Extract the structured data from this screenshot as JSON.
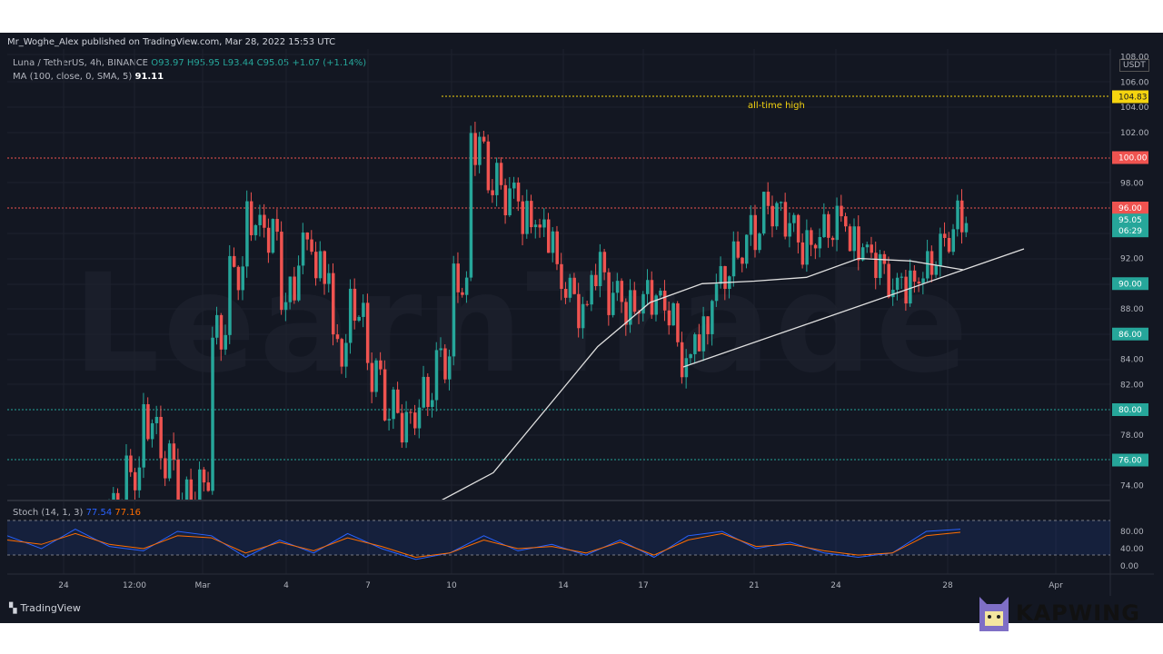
{
  "header": {
    "published": "Mr_Woghe_Alex published on TradingView.com, Mar 28, 2022 15:53 UTC"
  },
  "legend": {
    "symbol": "Luna / TetherUS, 4h, BINANCE",
    "o": "O93.97",
    "h": "H95.95",
    "l": "L93.44",
    "c": "C95.05",
    "chg": "+1.07 (+1.14%)",
    "ma_label": "MA (100, close, 0, SMA, 5)",
    "ma_value": "91.11"
  },
  "stoch": {
    "label": "Stoch (14, 1, 3)",
    "k": "77.54",
    "d": "77.16"
  },
  "price_axis": {
    "unit": "USDT",
    "ticks": [
      "108.00",
      "106.00",
      "104.00",
      "102.00",
      "98.00",
      "92.00",
      "88.00",
      "84.00",
      "82.00",
      "78.00",
      "74.00"
    ],
    "stoch_ticks": [
      "80.00",
      "40.00",
      "0.00"
    ]
  },
  "badges": {
    "ath": "104.83",
    "l100": "100.00",
    "l96": "96.00",
    "price": "95.05",
    "countdown": "06:29",
    "l90": "90.00",
    "l86": "86.00",
    "l80": "80.00",
    "l76": "76.00"
  },
  "annotation": {
    "ath_text": "all-time high"
  },
  "time_axis": {
    "labels": [
      "24",
      "12:00",
      "Mar",
      "4",
      "7",
      "10",
      "14",
      "17",
      "21",
      "24",
      "28",
      "Apr"
    ]
  },
  "watermark": "LearnTrade",
  "branding": {
    "tradingview": "TradingView",
    "kapwing": "KAPWING"
  },
  "colors": {
    "bg": "#131722",
    "up": "#26a69a",
    "down": "#ef5350",
    "ma": "#e0e0e0",
    "ath": "#f5d40f",
    "stoch_k": "#2962ff",
    "stoch_d": "#ff6d00"
  },
  "chart_data": {
    "type": "candlestick",
    "title": "Luna / TetherUS, 4h, BINANCE",
    "ylim": [
      72.5,
      108.5
    ],
    "horizontal_levels": [
      {
        "value": 104.83,
        "color": "#f5d40f",
        "label": "all-time high"
      },
      {
        "value": 100.0,
        "color": "#ef5350"
      },
      {
        "value": 96.0,
        "color": "#ef5350"
      },
      {
        "value": 80.0,
        "color": "#26a69a"
      },
      {
        "value": 76.0,
        "color": "#26a69a"
      }
    ],
    "trendline": {
      "from": [
        "Mar 18",
        83.4
      ],
      "to": [
        "Mar 30",
        93.0
      ]
    },
    "closes_approx": [
      72,
      75,
      79,
      76,
      73,
      74,
      86,
      91,
      95,
      94,
      89,
      93,
      91,
      85,
      88,
      83,
      80,
      79,
      81,
      84,
      90,
      101,
      98,
      97,
      95,
      94,
      90,
      88,
      91,
      89,
      88,
      89,
      88,
      84,
      86,
      90,
      92,
      94,
      96,
      95,
      93,
      94,
      95,
      93,
      92,
      90,
      90,
      91,
      93,
      95
    ],
    "ma100_approx": [
      70,
      71.5,
      75,
      80,
      85,
      88.5,
      90,
      90.2,
      90.5,
      92,
      91.8,
      91.1
    ],
    "stoch_k_approx": [
      70,
      40,
      85,
      45,
      35,
      80,
      70,
      20,
      60,
      30,
      75,
      40,
      15,
      30,
      70,
      35,
      50,
      25,
      60,
      20,
      70,
      80,
      40,
      55,
      30,
      20,
      30,
      80,
      85
    ],
    "stoch_d_approx": [
      60,
      50,
      75,
      50,
      40,
      70,
      65,
      30,
      55,
      35,
      65,
      45,
      20,
      30,
      60,
      40,
      45,
      30,
      55,
      25,
      60,
      75,
      45,
      50,
      35,
      25,
      30,
      70,
      78
    ]
  }
}
